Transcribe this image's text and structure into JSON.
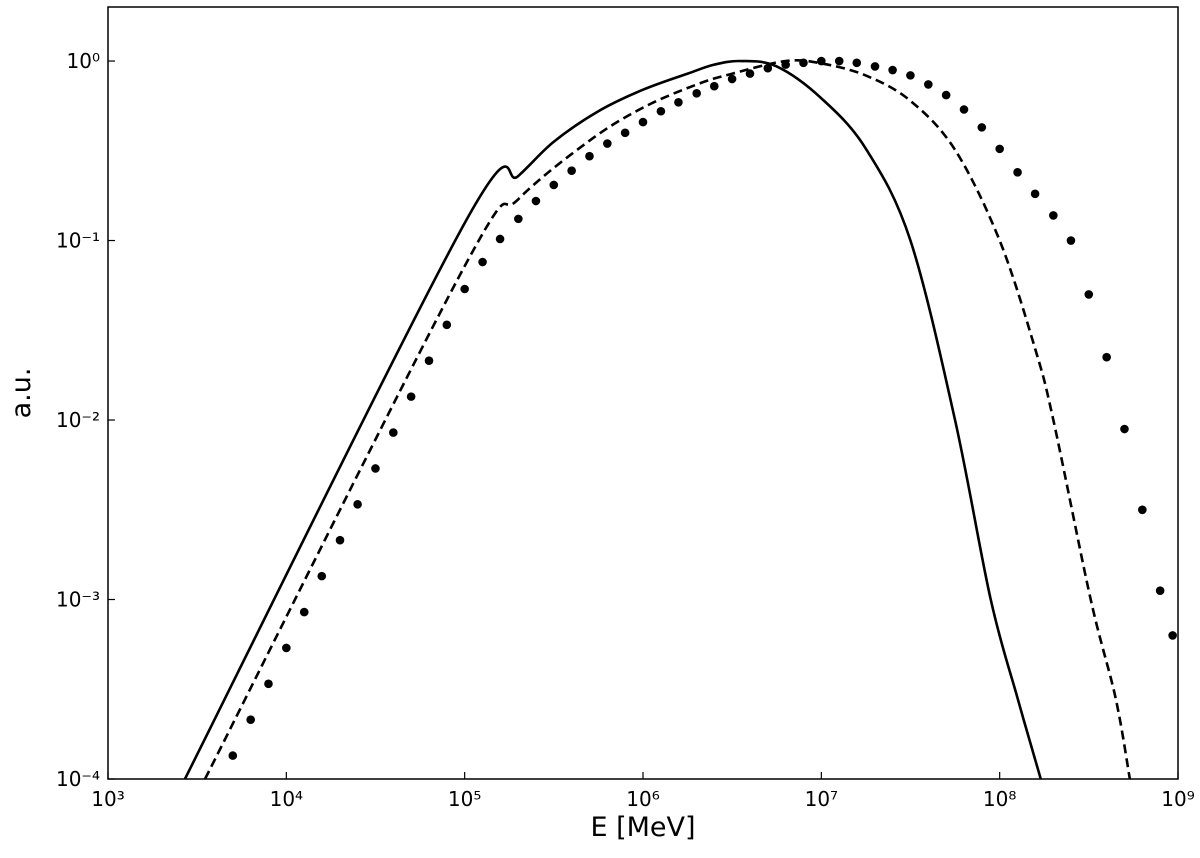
{
  "chart_data": {
    "type": "line",
    "x_label": "E [MeV]",
    "y_label": "a.u.",
    "xscale": "log",
    "yscale": "log",
    "xlim": [
      1000,
      1000000000
    ],
    "ylim": [
      0.0001,
      2
    ],
    "xticks": [
      {
        "value": 1000,
        "label": "10³"
      },
      {
        "value": 10000,
        "label": "10⁴"
      },
      {
        "value": 100000,
        "label": "10⁵"
      },
      {
        "value": 1000000,
        "label": "10⁶"
      },
      {
        "value": 10000000,
        "label": "10⁷"
      },
      {
        "value": 100000000,
        "label": "10⁸"
      },
      {
        "value": 1000000000,
        "label": "10⁹"
      }
    ],
    "yticks": [
      {
        "value": 0.0001,
        "label": "10⁻⁴"
      },
      {
        "value": 0.001,
        "label": "10⁻³"
      },
      {
        "value": 0.01,
        "label": "10⁻²"
      },
      {
        "value": 0.1,
        "label": "10⁻¹"
      },
      {
        "value": 1,
        "label": "10⁰"
      }
    ],
    "grid": false,
    "series": [
      {
        "style": "solid",
        "color": "#000000",
        "x": [
          2700,
          100000,
          200000,
          316000,
          562000,
          1000000,
          1780000,
          2510000,
          3550000,
          5620000,
          10000000,
          17800000,
          31600000,
          56200000,
          89100000,
          126000000,
          170000000
        ],
        "values": [
          0.0001,
          0.125,
          0.229,
          0.355,
          0.525,
          0.692,
          0.851,
          0.955,
          1,
          0.933,
          0.62,
          0.324,
          0.1,
          0.01,
          0.001,
          0.000282,
          0.0001
        ]
      },
      {
        "style": "dashed",
        "color": "#000000",
        "x": [
          3500,
          100000,
          200000,
          501000,
          1000000,
          2000000,
          3160000,
          6310000,
          10000000,
          17800000,
          31600000,
          56200000,
          100000000,
          158000000,
          200000000,
          324000000,
          447000000,
          537000000
        ],
        "values": [
          0.0001,
          0.072,
          0.17,
          0.36,
          0.55,
          0.74,
          0.85,
          1,
          0.97,
          0.83,
          0.6,
          0.32,
          0.1,
          0.025,
          0.01,
          0.001,
          0.000282,
          0.0001
        ]
      },
      {
        "style": "dotted",
        "color": "#000000",
        "x": [
          5010,
          6310,
          7940,
          10000,
          12600,
          15800,
          20000,
          25100,
          31600,
          39800,
          50100,
          63100,
          79400,
          100000,
          126000,
          158000,
          200000,
          251000,
          316000,
          398000,
          501000,
          631000,
          794000,
          1000000,
          1260000,
          1580000,
          2000000,
          2510000,
          3160000,
          3980000,
          5010000,
          6310000,
          7940000,
          10000000,
          12600000,
          15800000,
          20000000,
          25100000,
          31600000,
          39800000,
          50100000,
          63100000,
          79400000,
          100000000,
          126000000,
          158000000,
          200000000,
          251000000,
          316000000,
          398000000,
          501000000,
          631000000,
          794000000,
          933000000
        ],
        "values": [
          0.000135,
          0.000214,
          0.000339,
          0.000537,
          0.000851,
          0.00135,
          0.00214,
          0.00339,
          0.00537,
          0.00851,
          0.0135,
          0.0214,
          0.0339,
          0.0537,
          0.0759,
          0.102,
          0.132,
          0.166,
          0.204,
          0.245,
          0.295,
          0.347,
          0.398,
          0.457,
          0.525,
          0.589,
          0.661,
          0.724,
          0.794,
          0.851,
          0.912,
          0.955,
          0.977,
          1,
          1,
          0.977,
          0.933,
          0.891,
          0.832,
          0.741,
          0.646,
          0.537,
          0.427,
          0.324,
          0.24,
          0.182,
          0.138,
          0.1,
          0.0501,
          0.0224,
          0.00891,
          0.00316,
          0.00112,
          0.000631
        ]
      }
    ]
  }
}
